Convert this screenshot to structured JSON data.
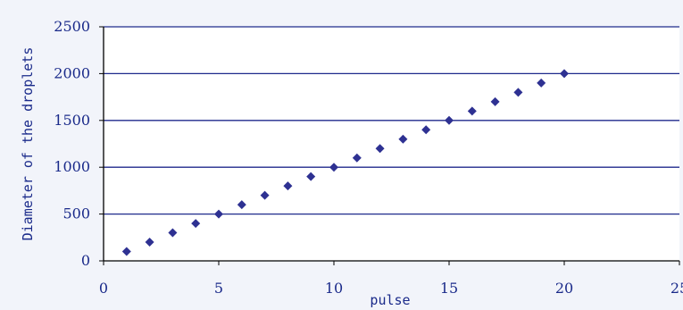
{
  "chart_data": {
    "type": "scatter",
    "title": "",
    "xlabel": "pulse",
    "ylabel": "Diameter of the droplets",
    "xlim": [
      0,
      25
    ],
    "ylim": [
      0,
      2500
    ],
    "x_ticks": [
      0,
      5,
      10,
      15,
      20,
      25
    ],
    "y_ticks": [
      0,
      500,
      1000,
      1500,
      2000,
      2500
    ],
    "x_tick_labels": [
      "0",
      "5",
      "10",
      "15",
      "20",
      "25"
    ],
    "y_tick_labels": [
      "0",
      "500",
      "1000",
      "1500",
      "2000",
      "2500"
    ],
    "grid": "horizontal",
    "legend": "none",
    "marker": "diamond",
    "colors": {
      "marker": "#2e3192",
      "gridline": "#1f2a8c",
      "axis": "#000000",
      "plot_background": "#ffffff",
      "page_background": "#f2f4fa",
      "text": "#1a2a8a"
    },
    "series": [
      {
        "x": [
          1,
          2,
          3,
          4,
          5,
          6,
          7,
          8,
          9,
          10,
          11,
          12,
          13,
          14,
          15,
          16,
          17,
          18,
          19,
          20
        ],
        "y": [
          100,
          200,
          300,
          400,
          500,
          600,
          700,
          800,
          900,
          1000,
          1100,
          1200,
          1300,
          1400,
          1500,
          1600,
          1700,
          1800,
          1900,
          2000
        ]
      }
    ]
  }
}
